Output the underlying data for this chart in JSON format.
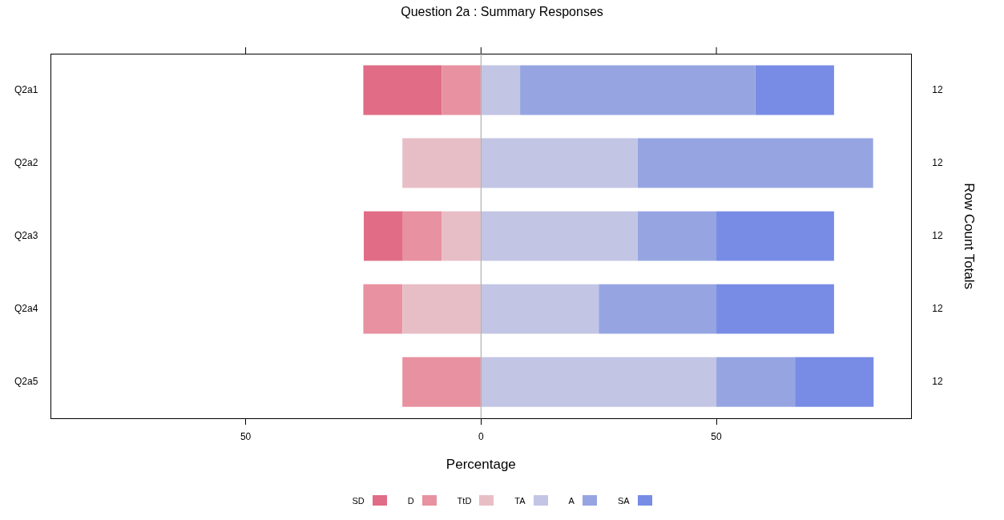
{
  "chart_data": {
    "type": "bar",
    "orientation": "horizontal",
    "stacked": true,
    "title": "Question 2a : Summary Responses",
    "xlabel": "Percentage",
    "y2label": "Row Count Totals",
    "categories": [
      "Q2a1",
      "Q2a2",
      "Q2a3",
      "Q2a4",
      "Q2a5"
    ],
    "y2_categories": [
      "12",
      "12",
      "12",
      "12",
      "12"
    ],
    "xlim": [
      -91.4,
      91.4
    ],
    "xticks": [
      {
        "value": -50,
        "label": "50"
      },
      0,
      50
    ],
    "ref_lines": [
      {
        "axis": "x",
        "value": 0,
        "color": "#a0a0a0"
      }
    ],
    "legend": "bottom",
    "grid": false,
    "series": [
      {
        "name": "SD",
        "color": "#e06c86",
        "values": [
          -16.7,
          0,
          -8.3,
          0,
          0
        ]
      },
      {
        "name": "D",
        "color": "#e891a0",
        "values": [
          -8.3,
          0,
          -8.3,
          -8.3,
          -16.7
        ]
      },
      {
        "name": "TtD",
        "color": "#e8bec6",
        "values": [
          0,
          -16.7,
          -8.3,
          -16.7,
          0
        ]
      },
      {
        "name": "TA",
        "color": "#c2c5e4",
        "values": [
          8.3,
          33.3,
          33.3,
          25,
          50
        ]
      },
      {
        "name": "A",
        "color": "#96a5e2",
        "values": [
          50,
          50,
          16.7,
          25,
          16.7
        ]
      },
      {
        "name": "SA",
        "color": "#788ce6",
        "values": [
          16.7,
          0,
          25,
          25,
          16.7
        ]
      }
    ]
  }
}
